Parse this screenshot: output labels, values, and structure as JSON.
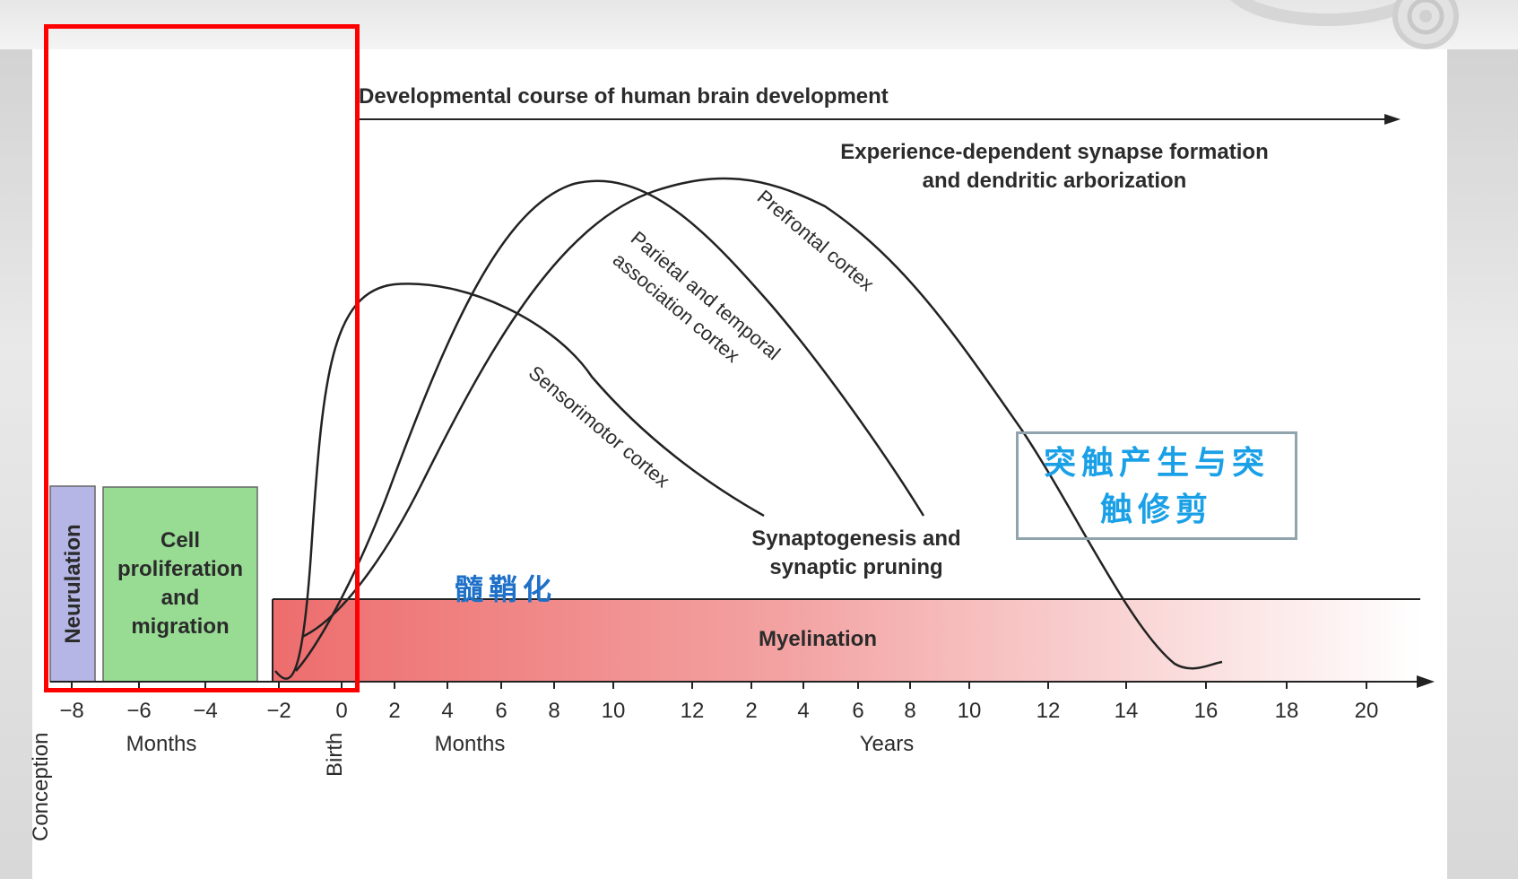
{
  "title": "Developmental course of human brain development",
  "bars": {
    "neurulation": "Neurulation",
    "cell_proliferation": [
      "Cell",
      "proliferation",
      "and",
      "migration"
    ],
    "myelination": "Myelination"
  },
  "labels": {
    "experience_dependent": [
      "Experience-dependent synapse formation",
      "and dendritic arborization"
    ],
    "synaptogenesis": [
      "Synaptogenesis and",
      "synaptic pruning"
    ],
    "prefrontal": "Prefrontal cortex",
    "parietal": [
      "Parietal and temporal",
      "association cortex"
    ],
    "sensorimotor": "Sensorimotor cortex"
  },
  "annotations": {
    "myelination_cn": "髓鞘化",
    "synapse_cn": [
      "突触产生与突",
      "触修剪"
    ]
  },
  "axis": {
    "ticks": [
      "−8",
      "−6",
      "−4",
      "−2",
      "0",
      "2",
      "4",
      "6",
      "8",
      "10",
      "12",
      "2",
      "4",
      "6",
      "8",
      "10",
      "12",
      "14",
      "16",
      "18",
      "20"
    ],
    "months_label_1": "Months",
    "months_label_2": "Months",
    "years_label": "Years",
    "conception": "Conception",
    "birth": "Birth"
  },
  "colors": {
    "neurulation_fill": "#b5b5e6",
    "proliferation_fill": "#98dc94",
    "myelination_start": "#ee6d6d",
    "myelination_end": "#ffffff",
    "highlight_box": "#ff0000",
    "cn_blue": "#1e70c8",
    "callout_text": "#1aa0e6"
  }
}
